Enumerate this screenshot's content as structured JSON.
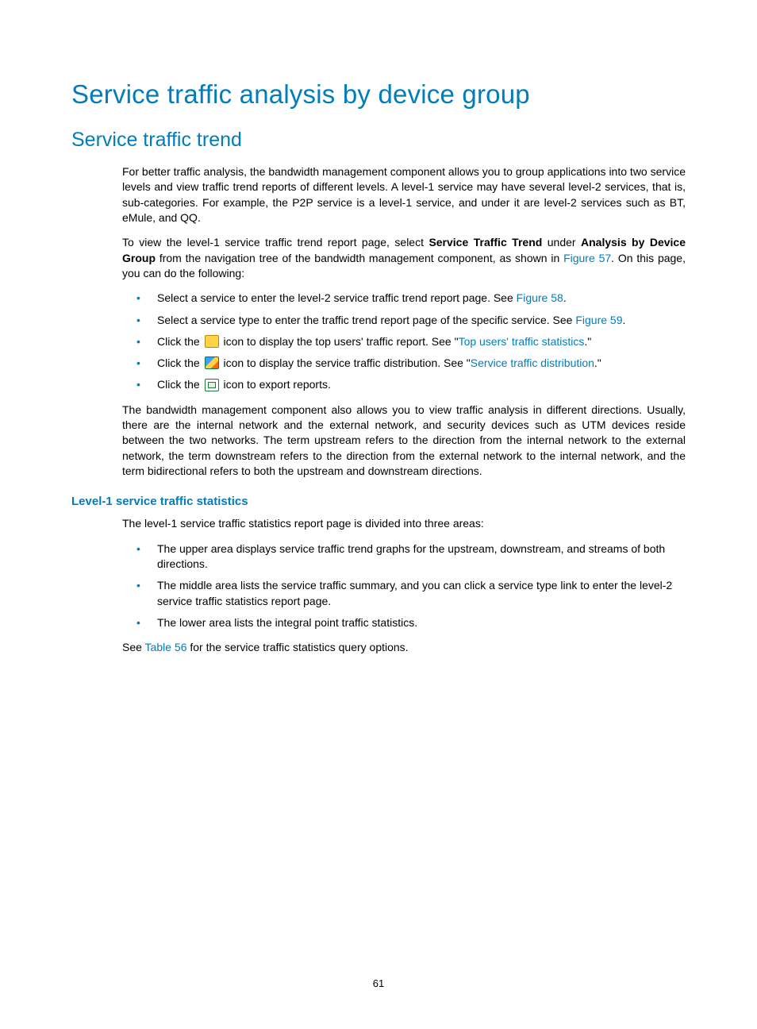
{
  "page": {
    "number": "61",
    "title": "Service traffic analysis by device group",
    "subtitle": "Service traffic trend",
    "intro_para": "For better traffic analysis, the bandwidth management component allows you to group applications into two service levels and view traffic trend reports of different levels. A level-1 service may have several level-2 services, that is, sub-categories. For example, the P2P service is a level-1 service, and under it are level-2 services such as BT, eMule, and QQ.",
    "nav_para_parts": {
      "p1": "To view the level-1 service traffic trend report page, select ",
      "b1": "Service Traffic Trend",
      "p2": " under ",
      "b2": "Analysis by Device Group",
      "p3": " from the navigation tree of the bandwidth management component, as shown in ",
      "fig57": "Figure 57",
      "p4": ". On this page, you can do the following:"
    },
    "bullets1": {
      "i0": {
        "pre": "Select a service to enter the level-2 service traffic trend report page. See ",
        "link": "Figure 58",
        "post": "."
      },
      "i1": {
        "pre": "Select a service type to enter the traffic trend report page of the specific service. See ",
        "link": "Figure 59",
        "post": "."
      },
      "i2": {
        "pre": "Click the ",
        "mid": " icon to display the top users' traffic report. See \"",
        "link": "Top users' traffic statistics",
        "post": ".\""
      },
      "i3": {
        "pre": "Click the ",
        "mid": " icon to display the service traffic distribution. See \"",
        "link": "Service traffic distribution",
        "post": ".\""
      },
      "i4": {
        "pre": "Click the ",
        "mid": " icon to export reports."
      }
    },
    "directions_para": "The bandwidth management component also allows you to view traffic analysis in different directions. Usually, there are the internal network and the external network, and security devices such as UTM devices reside between the two networks. The term upstream refers to the direction from the internal network to the external network, the term downstream refers to the direction from the external network to the internal network, and the term bidirectional refers to both the upstream and downstream directions.",
    "subhead": "Level-1 service traffic statistics",
    "level1_intro": "The level-1 service traffic statistics report page is divided into three areas:",
    "bullets2": {
      "i0": "The upper area displays service traffic trend graphs for the upstream, downstream, and streams of both directions.",
      "i1": "The middle area lists the service traffic summary, and you can click a service type link to enter the level-2 service traffic statistics report page.",
      "i2": "The lower area lists the integral point traffic statistics."
    },
    "see_table_parts": {
      "p1": "See ",
      "link": "Table 56",
      "p2": " for the service traffic statistics query options."
    }
  },
  "colors": {
    "accent": "#007dba",
    "text": "#000000",
    "background": "#ffffff"
  }
}
